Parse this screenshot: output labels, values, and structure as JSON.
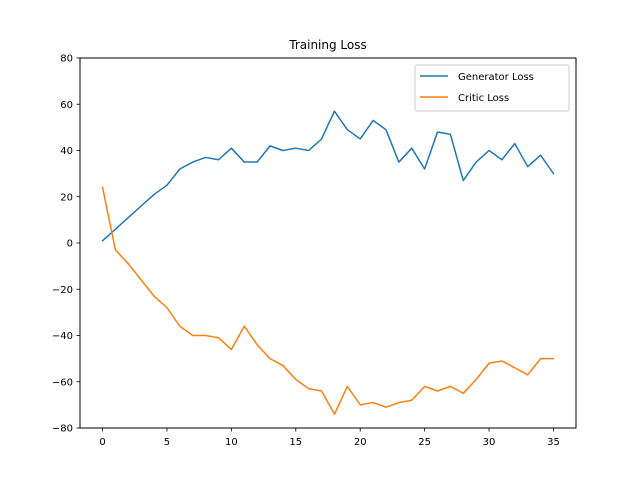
{
  "chart_data": {
    "type": "line",
    "title": "Training Loss",
    "xlabel": "",
    "ylabel": "",
    "xlim": [
      -1.75,
      36.75
    ],
    "ylim": [
      -80,
      80
    ],
    "xticks": [
      0,
      5,
      10,
      15,
      20,
      25,
      30,
      35
    ],
    "yticks": [
      -80,
      -60,
      -40,
      -20,
      0,
      20,
      40,
      60,
      80
    ],
    "legend": "top-right",
    "grid": false,
    "x": [
      0,
      1,
      2,
      3,
      4,
      5,
      6,
      7,
      8,
      9,
      10,
      11,
      12,
      13,
      14,
      15,
      16,
      17,
      18,
      19,
      20,
      21,
      22,
      23,
      24,
      25,
      26,
      27,
      28,
      29,
      30,
      31,
      32,
      33,
      34,
      35
    ],
    "series": [
      {
        "name": "Generator Loss",
        "color": "#1f77b4",
        "values": [
          1,
          6,
          11,
          16,
          21,
          25,
          32,
          35,
          37,
          36,
          41,
          35,
          35,
          42,
          40,
          41,
          40,
          45,
          57,
          49,
          45,
          53,
          49,
          35,
          41,
          32,
          48,
          47,
          27,
          35,
          40,
          36,
          43,
          33,
          38,
          30
        ]
      },
      {
        "name": "Critic Loss",
        "color": "#ff7f0e",
        "values": [
          24,
          -3,
          -9,
          -16,
          -23,
          -28,
          -36,
          -40,
          -40,
          -41,
          -46,
          -36,
          -44,
          -50,
          -53,
          -59,
          -63,
          -64,
          -74,
          -62,
          -70,
          -69,
          -71,
          -69,
          -68,
          -62,
          -64,
          -62,
          -65,
          -59,
          -52,
          -51,
          -54,
          -57,
          -50,
          -50
        ]
      }
    ]
  }
}
